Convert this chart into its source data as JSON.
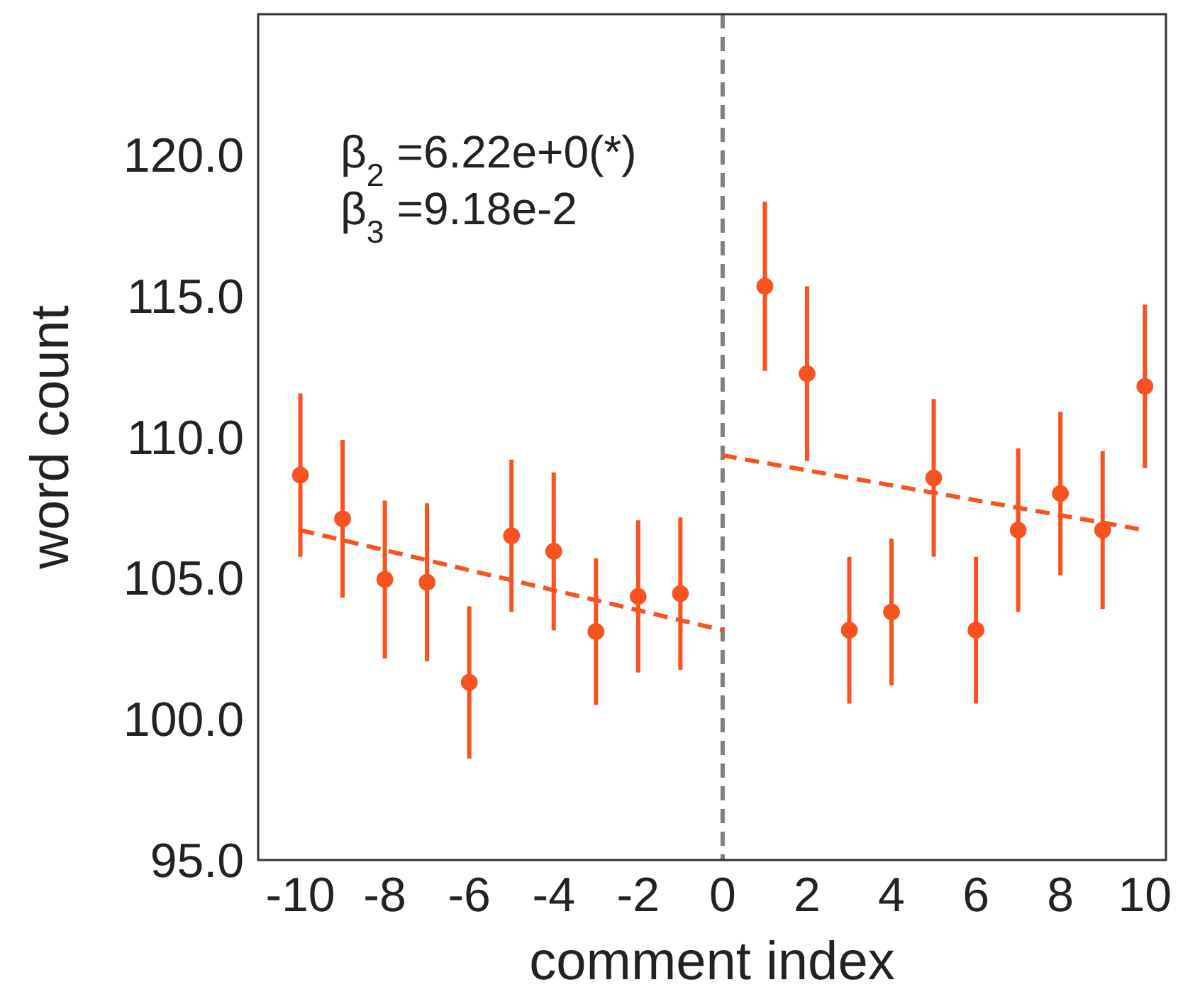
{
  "chart_data": {
    "type": "scatter",
    "xlabel": "comment index",
    "ylabel": "word count",
    "xlim": [
      -11,
      10.5
    ],
    "ylim": [
      95,
      125
    ],
    "xticks": [
      -10,
      -8,
      -6,
      -4,
      -2,
      0,
      2,
      4,
      6,
      8,
      10
    ],
    "yticks": [
      {
        "value": 95,
        "label": "95.0"
      },
      {
        "value": 100,
        "label": "100.0"
      },
      {
        "value": 105,
        "label": "105.0"
      },
      {
        "value": 110,
        "label": "110.0"
      },
      {
        "value": 115,
        "label": "115.0"
      },
      {
        "value": 120,
        "label": "120.0"
      }
    ],
    "series": [
      {
        "marker": "circle",
        "color": "#f9521e",
        "x": [
          -10,
          -9,
          -8,
          -7,
          -6,
          -5,
          -4,
          -3,
          -2,
          -1,
          1,
          2,
          3,
          4,
          5,
          6,
          7,
          8,
          9,
          10
        ],
        "values": [
          108.65,
          107.1,
          104.95,
          104.85,
          101.3,
          106.5,
          105.95,
          103.1,
          104.35,
          104.45,
          115.35,
          112.25,
          103.15,
          103.8,
          108.55,
          103.15,
          106.7,
          108.0,
          106.7,
          111.8
        ],
        "errors": [
          2.9,
          2.8,
          2.8,
          2.8,
          2.7,
          2.7,
          2.8,
          2.6,
          2.7,
          2.7,
          3.0,
          3.1,
          2.6,
          2.6,
          2.8,
          2.6,
          2.9,
          2.9,
          2.8,
          2.9
        ]
      },
      {
        "type": "line",
        "color": "#f9521e",
        "line_style": "dashed",
        "x": [
          -10,
          0
        ],
        "values": [
          106.7,
          103.15
        ]
      },
      {
        "type": "line",
        "color": "#f9521e",
        "line_style": "dashed",
        "x": [
          0,
          10
        ],
        "values": [
          109.35,
          106.7
        ]
      }
    ],
    "ref_lines": [
      {
        "axis": "x",
        "value": 0,
        "color": "#808080",
        "line_style": "dashed"
      }
    ],
    "annotations": [
      "β$_{2}$ =6.22e+0(*)",
      "β$_{3}$ =9.18e-2"
    ]
  }
}
